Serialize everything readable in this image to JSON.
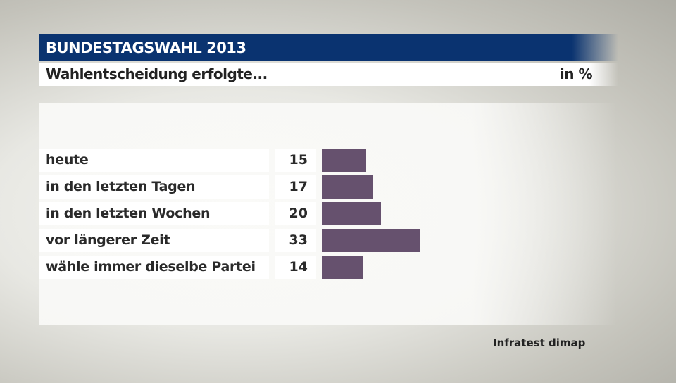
{
  "header": {
    "title": "BUNDESTAGSWAHL 2013",
    "subtitle": "Wahlentscheidung erfolgte...",
    "unit": "in %"
  },
  "chart_data": {
    "type": "bar",
    "orientation": "horizontal",
    "categories": [
      "heute",
      "in den letzten Tagen",
      "in den letzten Wochen",
      "vor längerer Zeit",
      "wähle immer dieselbe Partei"
    ],
    "values": [
      15,
      17,
      20,
      33,
      14
    ],
    "bar_color": "#66516e"
  },
  "source": "Infratest dimap",
  "colors": {
    "header": "#0a3370"
  }
}
